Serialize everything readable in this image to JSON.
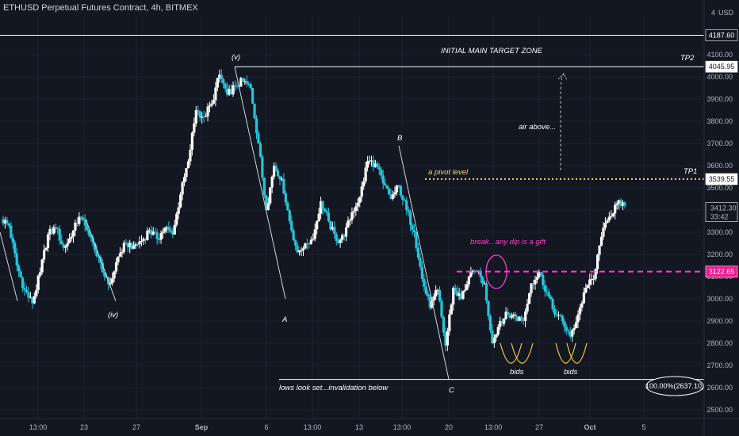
{
  "header": {
    "title": "ETHUSD Perpetual Futures Contract, 4h, BITMEX",
    "currency": "USD",
    "menu_count": "4"
  },
  "colors": {
    "background": "#131722",
    "up": "#ffffff",
    "down": "#26c6da",
    "axis_text": "#b2b5be",
    "grid": "#1e222d",
    "pink": "#ff3ec8",
    "yellow": "#f5d76e",
    "accent_tag": "#e91e8c"
  },
  "chart_data": {
    "type": "candlestick",
    "symbol": "ETHUSD",
    "timeframe": "4h",
    "ylim": [
      2500,
      4260
    ],
    "y_ticks": [
      2500,
      2600,
      2700,
      2800,
      2900,
      3000,
      3100,
      3200,
      3300,
      3400,
      3500,
      3600,
      3700,
      3800,
      3900,
      4000,
      4100
    ],
    "x_ticks": [
      "13:00",
      "23",
      "27",
      "Sep",
      "6",
      "13:00",
      "13",
      "13:00",
      "20",
      "13:00",
      "27",
      "Oct",
      "5"
    ],
    "price_path": [
      [
        3360,
        3330
      ],
      [
        3250,
        3150
      ],
      [
        3120,
        3040
      ],
      [
        2990,
        2980
      ],
      [
        3050,
        3120
      ],
      [
        3250,
        3290
      ],
      [
        3310,
        3320
      ],
      [
        3290,
        3230
      ],
      [
        3250,
        3280
      ],
      [
        3320,
        3370
      ],
      [
        3360,
        3310
      ],
      [
        3260,
        3220
      ],
      [
        3160,
        3120
      ],
      [
        3080,
        3070
      ],
      [
        3120,
        3190
      ],
      [
        3230,
        3250
      ],
      [
        3260,
        3240
      ],
      [
        3230,
        3260
      ],
      [
        3300,
        3310
      ],
      [
        3250,
        3270
      ],
      [
        3300,
        3320
      ],
      [
        3280,
        3290
      ],
      [
        3380,
        3470
      ],
      [
        3560,
        3620
      ],
      [
        3780,
        3850
      ],
      [
        3760,
        3820
      ],
      [
        3850,
        3880
      ],
      [
        4000,
        4010
      ],
      [
        3940,
        3920
      ],
      [
        3880,
        3960
      ],
      [
        3980,
        3980
      ],
      [
        3960,
        3950
      ],
      [
        3900,
        3700
      ],
      [
        3450,
        3400
      ],
      [
        3440,
        3600
      ],
      [
        3580,
        3540
      ],
      [
        3420,
        3350
      ],
      [
        3300,
        3210
      ],
      [
        3180,
        3250
      ],
      [
        3310,
        3270
      ],
      [
        3330,
        3440
      ],
      [
        3460,
        3350
      ],
      [
        3300,
        3260
      ],
      [
        3250,
        3280
      ],
      [
        3360,
        3390
      ],
      [
        3450,
        3460
      ],
      [
        3560,
        3620
      ],
      [
        3680,
        3610
      ],
      [
        3580,
        3520
      ],
      [
        3480,
        3450
      ],
      [
        3500,
        3510
      ],
      [
        3450,
        3400
      ],
      [
        3380,
        3300
      ],
      [
        3260,
        3090
      ],
      [
        3060,
        2960
      ],
      [
        3080,
        3040
      ],
      [
        2920,
        2790
      ],
      [
        2860,
        3050
      ],
      [
        3030,
        3000
      ],
      [
        3020,
        3100
      ],
      [
        3150,
        3120
      ],
      [
        3130,
        3070
      ],
      [
        3000,
        2800
      ],
      [
        2840,
        2900
      ],
      [
        2950,
        2930
      ],
      [
        2880,
        2920
      ],
      [
        2830,
        2900
      ],
      [
        3000,
        3070
      ],
      [
        3150,
        3120
      ],
      [
        3080,
        3030
      ],
      [
        2960,
        2930
      ],
      [
        2890,
        2900
      ],
      [
        2860,
        2830
      ],
      [
        2850,
        2930
      ],
      [
        2990,
        3050
      ],
      [
        3020,
        3090
      ],
      [
        3180,
        3280
      ],
      [
        3320,
        3370
      ],
      [
        3420,
        3430
      ],
      [
        3410,
        3420
      ]
    ],
    "horizontal_levels": [
      {
        "value": 4187.6,
        "label": "4187.60"
      },
      {
        "value": 4045.95,
        "label": "4045.95"
      },
      {
        "value": 3539.55,
        "label": "3539.55"
      },
      {
        "value": 3122.65,
        "label": "3122.65"
      },
      {
        "value": 2637.1,
        "label": "100.00%(2637.10)"
      }
    ],
    "last_price": {
      "value": 3412.3,
      "label": "3412.30",
      "countdown": "33:42"
    },
    "wave_labels": [
      "(v)",
      "(iv)",
      "A",
      "B",
      "C"
    ],
    "annotations": {
      "target_zone": "INITIAL MAIN TARGET ZONE",
      "tp2": "TP2",
      "tp1": "TP1",
      "air_above": "air above...",
      "pivot": "a pivot level",
      "break": "break.. any dip is a gift",
      "bids_1": "bids",
      "bids_2": "bids",
      "lows": "lows look set...invalidation below"
    }
  }
}
